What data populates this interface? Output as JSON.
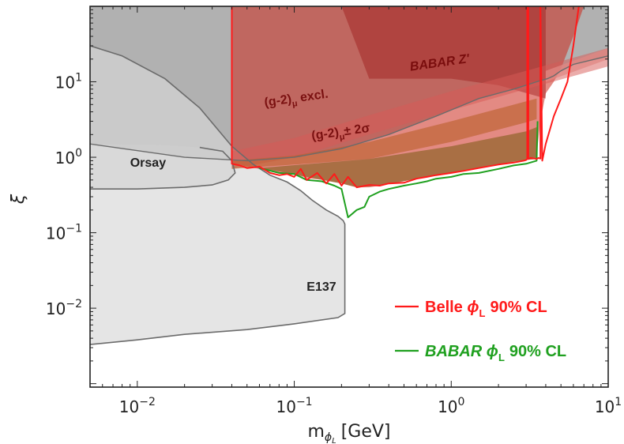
{
  "chart_data": {
    "type": "area",
    "xlabel": "m",
    "xlabel_sub": "ϕ",
    "xlabel_subsub": "L",
    "xlabel_unit": "[GeV]",
    "ylabel": "ξ",
    "xscale": "log",
    "yscale": "log",
    "xlim": [
      0.005,
      10
    ],
    "ylim": [
      0.0009,
      100
    ],
    "x_ticks": [
      {
        "value": 0.01,
        "base": "10",
        "exp": "−2"
      },
      {
        "value": 0.1,
        "base": "10",
        "exp": "−1"
      },
      {
        "value": 1,
        "base": "10",
        "exp": "0"
      },
      {
        "value": 10,
        "base": "10",
        "exp": "1"
      }
    ],
    "y_ticks": [
      {
        "value": 0.01,
        "base": "10",
        "exp": "−2"
      },
      {
        "value": 0.1,
        "base": "10",
        "exp": "−1"
      },
      {
        "value": 1,
        "base": "10",
        "exp": "0"
      },
      {
        "value": 10,
        "base": "10",
        "exp": "1"
      }
    ],
    "grid": false,
    "legend_position": "bottom-right",
    "regions": [
      {
        "name": "dark-gray-exclusion",
        "color": "#9e9e9e",
        "opacity": 0.8,
        "points": [
          [
            0.005,
            100
          ],
          [
            10,
            100
          ],
          [
            10,
            22
          ],
          [
            6.0,
            17
          ],
          [
            5.0,
            14
          ],
          [
            4.5,
            12
          ],
          [
            4.1,
            11
          ],
          [
            3.5,
            10
          ],
          [
            2.5,
            8
          ],
          [
            1.5,
            6
          ],
          [
            0.8,
            3.5
          ],
          [
            0.4,
            2.0
          ],
          [
            0.2,
            1.3
          ],
          [
            0.1,
            1.0
          ],
          [
            0.05,
            0.9
          ],
          [
            0.02,
            1.0
          ],
          [
            0.005,
            1.5
          ]
        ]
      },
      {
        "name": "light-gray-exclusion",
        "color": "#d7d7d7",
        "opacity": 0.65,
        "points": [
          [
            0.005,
            30
          ],
          [
            0.008,
            22
          ],
          [
            0.015,
            11
          ],
          [
            0.025,
            4.5
          ],
          [
            0.04,
            1.4
          ],
          [
            0.055,
            0.8
          ],
          [
            0.07,
            0.58
          ],
          [
            0.09,
            0.47
          ],
          [
            0.11,
            0.36
          ],
          [
            0.13,
            0.27
          ],
          [
            0.16,
            0.2
          ],
          [
            0.19,
            0.165
          ],
          [
            0.205,
            0.145
          ],
          [
            0.21,
            0.13
          ],
          [
            0.21,
            0.0085
          ],
          [
            0.19,
            0.0075
          ],
          [
            0.1,
            0.0062
          ],
          [
            0.05,
            0.0052
          ],
          [
            0.02,
            0.0045
          ],
          [
            0.01,
            0.0038
          ],
          [
            0.005,
            0.0033
          ]
        ]
      },
      {
        "name": "orsay-region",
        "color": "#cfcfcf",
        "opacity": 0.55,
        "points": [
          [
            0.005,
            1.5
          ],
          [
            0.015,
            1.45
          ],
          [
            0.025,
            1.35
          ],
          [
            0.035,
            1.2
          ],
          [
            0.04,
            0.9
          ],
          [
            0.042,
            0.62
          ],
          [
            0.038,
            0.5
          ],
          [
            0.03,
            0.43
          ],
          [
            0.02,
            0.4
          ],
          [
            0.01,
            0.38
          ],
          [
            0.005,
            0.38
          ]
        ]
      },
      {
        "name": "red-exclusion",
        "color": "#cc2a1e",
        "opacity": 0.55,
        "points": [
          [
            0.04,
            100
          ],
          [
            7.0,
            100
          ],
          [
            6.0,
            40
          ],
          [
            5.0,
            15
          ],
          [
            4.5,
            10
          ],
          [
            4.0,
            7
          ],
          [
            3.7,
            3
          ],
          [
            3.55,
            1.4
          ],
          [
            3.5,
            0.95
          ],
          [
            3.0,
            0.92
          ],
          [
            2.5,
            0.88
          ],
          [
            2.0,
            0.8
          ],
          [
            1.5,
            0.72
          ],
          [
            1.0,
            0.62
          ],
          [
            0.8,
            0.58
          ],
          [
            0.6,
            0.52
          ],
          [
            0.45,
            0.46
          ],
          [
            0.35,
            0.42
          ],
          [
            0.3,
            0.4
          ],
          [
            0.25,
            0.4
          ],
          [
            0.2,
            0.45
          ],
          [
            0.15,
            0.5
          ],
          [
            0.12,
            0.53
          ],
          [
            0.1,
            0.6
          ],
          [
            0.08,
            0.62
          ],
          [
            0.06,
            0.7
          ],
          [
            0.05,
            0.75
          ],
          [
            0.045,
            0.8
          ],
          [
            0.04,
            0.8
          ]
        ]
      },
      {
        "name": "babar-zprime",
        "color": "#9e1a1a",
        "opacity": 0.45,
        "points": [
          [
            0.2,
            100
          ],
          [
            4.0,
            100
          ],
          [
            4.0,
            6
          ],
          [
            2.0,
            9
          ],
          [
            1.0,
            11
          ],
          [
            0.5,
            11
          ],
          [
            0.3,
            11
          ],
          [
            0.25,
            30
          ]
        ]
      },
      {
        "name": "g2-band-upper",
        "color": "#d85a56",
        "opacity": 0.5,
        "points": [
          [
            0.04,
            1.2
          ],
          [
            0.1,
            1.8
          ],
          [
            0.3,
            3.6
          ],
          [
            1.0,
            7.5
          ],
          [
            3.0,
            14
          ],
          [
            10,
            28
          ],
          [
            10,
            16
          ],
          [
            3.0,
            8
          ],
          [
            1.0,
            4.2
          ],
          [
            0.3,
            2.0
          ],
          [
            0.1,
            1.0
          ],
          [
            0.04,
            0.7
          ]
        ]
      },
      {
        "name": "g2-band-lower",
        "color": "#b95f2a",
        "opacity": 0.6,
        "points": [
          [
            0.04,
            0.9
          ],
          [
            0.1,
            1.05
          ],
          [
            0.3,
            1.6
          ],
          [
            1.0,
            3.0
          ],
          [
            3.0,
            5.5
          ],
          [
            3.5,
            6
          ],
          [
            3.5,
            3.2
          ],
          [
            3.0,
            2.9
          ],
          [
            1.0,
            1.6
          ],
          [
            0.3,
            0.95
          ],
          [
            0.1,
            0.8
          ],
          [
            0.04,
            0.7
          ]
        ]
      },
      {
        "name": "olive-fill",
        "color": "#7a5a10",
        "opacity": 0.55,
        "points": [
          [
            0.06,
            0.72
          ],
          [
            0.3,
            0.95
          ],
          [
            1.0,
            1.4
          ],
          [
            3.0,
            2.2
          ],
          [
            3.5,
            2.5
          ],
          [
            3.5,
            0.95
          ],
          [
            3.0,
            0.92
          ],
          [
            2.0,
            0.8
          ],
          [
            1.0,
            0.62
          ],
          [
            0.6,
            0.52
          ],
          [
            0.35,
            0.42
          ],
          [
            0.25,
            0.4
          ],
          [
            0.2,
            0.45
          ],
          [
            0.12,
            0.55
          ],
          [
            0.08,
            0.65
          ]
        ]
      },
      {
        "name": "g2-band-right-tail",
        "color": "#e08883",
        "opacity": 0.75,
        "points": [
          [
            4.0,
            14
          ],
          [
            10,
            28
          ],
          [
            10,
            20
          ],
          [
            4.0,
            10
          ]
        ]
      }
    ],
    "series": [
      {
        "name": "Belle",
        "symbol": "ϕ",
        "symbol_sub": "L",
        "suffix": "90% CL",
        "color": "#ff1a1a",
        "x": [
          0.04,
          0.04,
          0.045,
          0.05,
          0.06,
          0.07,
          0.08,
          0.09,
          0.1,
          0.11,
          0.12,
          0.14,
          0.16,
          0.18,
          0.2,
          0.22,
          0.25,
          0.3,
          0.35,
          0.4,
          0.5,
          0.6,
          0.7,
          0.8,
          1.0,
          1.2,
          1.5,
          2.0,
          2.5,
          2.9,
          3.0,
          3.05,
          3.05,
          3.1,
          3.1,
          3.2,
          3.5,
          3.6,
          3.7,
          3.7,
          3.8,
          4.0,
          4.5,
          5.0,
          5.5,
          6.0,
          6.5
        ],
        "y": [
          100,
          0.82,
          0.78,
          0.72,
          0.75,
          0.62,
          0.58,
          0.6,
          0.55,
          0.7,
          0.5,
          0.62,
          0.45,
          0.6,
          0.42,
          0.55,
          0.4,
          0.43,
          0.42,
          0.45,
          0.46,
          0.52,
          0.55,
          0.58,
          0.62,
          0.66,
          0.72,
          0.8,
          0.85,
          0.9,
          0.92,
          0.95,
          100,
          100,
          0.95,
          0.98,
          0.95,
          0.98,
          0.96,
          100,
          0.9,
          1.5,
          3.5,
          6,
          10,
          30,
          100
        ]
      },
      {
        "name": "BABAR",
        "symbol": "ϕ",
        "symbol_sub": "L",
        "suffix": "90% CL",
        "color": "#1fa01f",
        "x": [
          0.06,
          0.08,
          0.1,
          0.12,
          0.15,
          0.18,
          0.2,
          0.22,
          0.25,
          0.28,
          0.3,
          0.35,
          0.4,
          0.5,
          0.6,
          0.7,
          0.8,
          1.0,
          1.2,
          1.5,
          2.0,
          2.5,
          3.0,
          3.5,
          3.55
        ],
        "y": [
          0.72,
          0.62,
          0.6,
          0.5,
          0.48,
          0.42,
          0.38,
          0.16,
          0.2,
          0.22,
          0.3,
          0.35,
          0.38,
          0.42,
          0.45,
          0.48,
          0.52,
          0.55,
          0.6,
          0.62,
          0.7,
          0.78,
          0.82,
          0.9,
          3.0
        ]
      }
    ],
    "annotations": [
      {
        "text": "BABAR Z'",
        "x": 0.55,
        "y": 14,
        "color": "#7a0d0d",
        "italic": true,
        "rotate": -8
      },
      {
        "text": "(g-2)",
        "sub": "μ",
        "suffix": " excl.",
        "x": 0.065,
        "y": 4.7,
        "color": "#7a1010",
        "italic": false,
        "rotate": -8
      },
      {
        "text": "(g-2)",
        "sub": "μ",
        "suffix": "± 2σ",
        "x": 0.13,
        "y": 1.7,
        "color": "#7a1010",
        "italic": false,
        "rotate": -8
      },
      {
        "text": "Orsay",
        "x": 0.009,
        "y": 0.75,
        "color": "#222222",
        "italic": false,
        "rotate": 0
      },
      {
        "text": "E137",
        "x": 0.12,
        "y": 0.017,
        "color": "#222222",
        "italic": false,
        "rotate": 0
      }
    ]
  }
}
